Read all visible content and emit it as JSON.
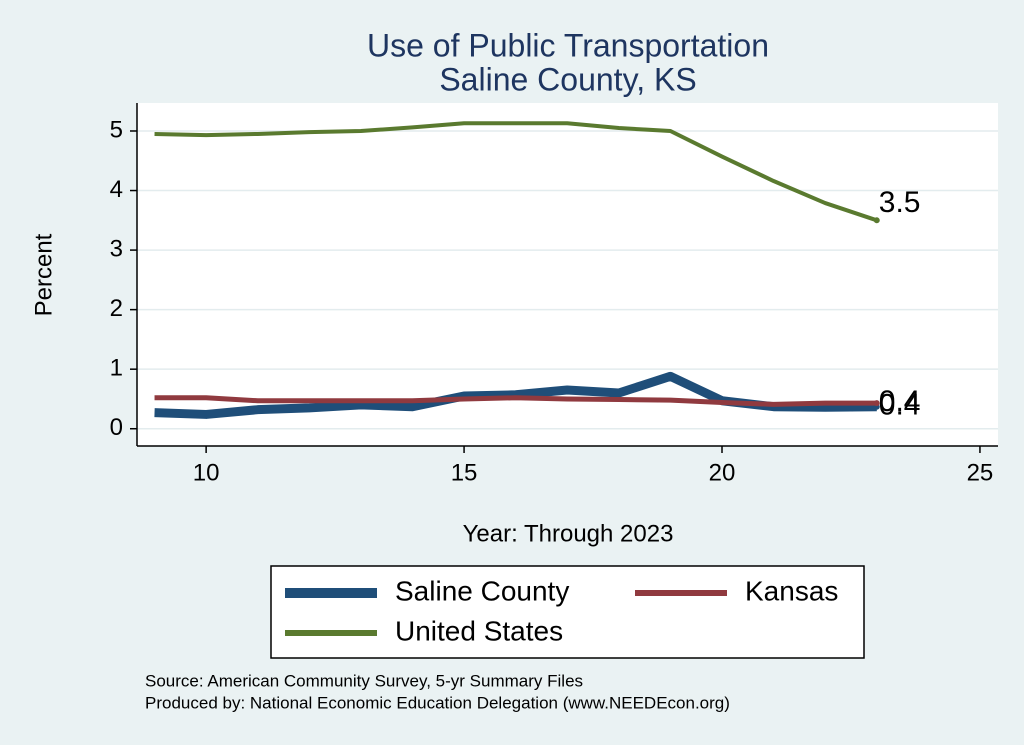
{
  "chart_data": {
    "type": "line",
    "title": "Use of Public Transportation",
    "subtitle": "Saline County, KS",
    "x_label": "Year: Through 2023",
    "y_label": "Percent",
    "x": [
      9,
      10,
      11,
      12,
      13,
      14,
      15,
      16,
      17,
      18,
      19,
      20,
      21,
      22,
      23
    ],
    "series": [
      {
        "name": "Saline County",
        "color": "#1f4e79",
        "values": [
          0.27,
          0.24,
          0.32,
          0.35,
          0.4,
          0.37,
          0.55,
          0.57,
          0.65,
          0.6,
          0.88,
          0.47,
          0.37,
          0.36,
          0.37
        ],
        "value_labels": [
          null,
          null,
          null,
          null,
          null,
          null,
          null,
          null,
          null,
          null,
          null,
          null,
          null,
          null,
          "0.4"
        ]
      },
      {
        "name": "Kansas",
        "color": "#903a3f",
        "values": [
          0.52,
          0.52,
          0.47,
          0.47,
          0.47,
          0.47,
          0.5,
          0.52,
          0.5,
          0.49,
          0.48,
          0.44,
          0.41,
          0.43,
          0.43
        ],
        "value_labels": [
          null,
          null,
          null,
          null,
          null,
          null,
          null,
          null,
          null,
          null,
          null,
          null,
          null,
          null,
          "0.4"
        ]
      },
      {
        "name": "United States",
        "color": "#5a7a2f",
        "values": [
          4.95,
          4.93,
          4.95,
          4.98,
          5.0,
          5.06,
          5.13,
          5.13,
          5.13,
          5.05,
          5.0,
          4.57,
          4.16,
          3.79,
          3.5
        ],
        "value_labels": [
          null,
          null,
          null,
          null,
          null,
          null,
          null,
          null,
          null,
          null,
          null,
          null,
          null,
          null,
          "3.5"
        ]
      }
    ],
    "xlim": [
      8.66,
      25.35
    ],
    "xticks": [
      10,
      15,
      20,
      25
    ],
    "ylim": [
      -0.29,
      5.47
    ],
    "yticks": [
      0,
      1,
      2,
      3,
      4,
      5
    ],
    "grid": true,
    "legend": "bottom",
    "notes": [
      "Source: American Community Survey, 5-yr Summary Files",
      "Produced by: National Economic Education Delegation (www.NEEDEcon.org)"
    ]
  }
}
